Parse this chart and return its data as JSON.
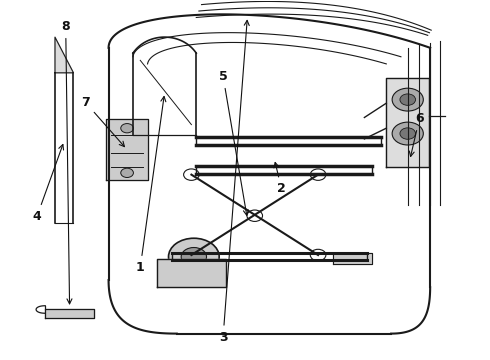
{
  "bg_color": "#ffffff",
  "line_color": "#1a1a1a",
  "label_color": "#111111",
  "label_fontsize": 9,
  "figsize": [
    4.9,
    3.6
  ],
  "dpi": 100
}
